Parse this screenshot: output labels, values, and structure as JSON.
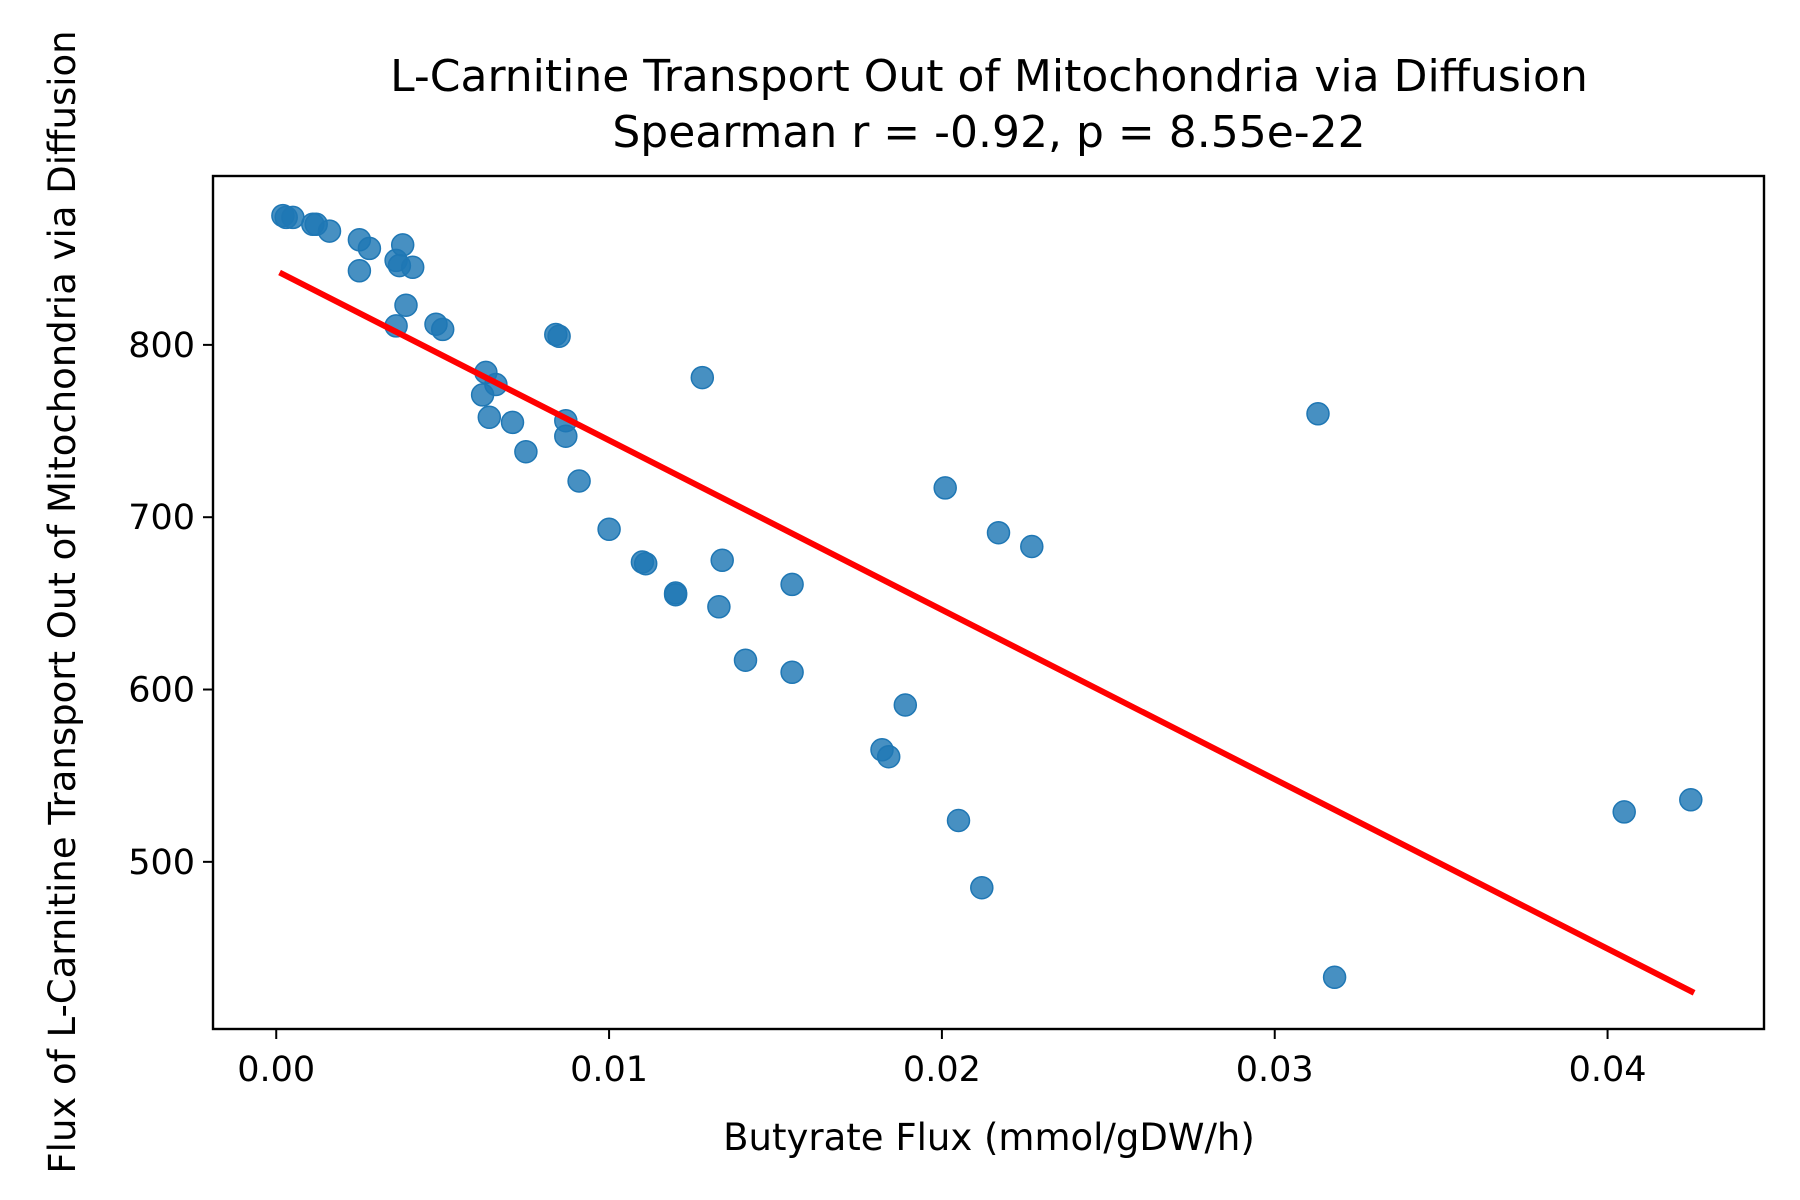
{
  "chart_data": {
    "type": "scatter",
    "title": "L-Carnitine Transport Out of Mitochondria via Diffusion",
    "subtitle": "Spearman r = -0.92, p = 8.55e-22",
    "xlabel": "Butyrate Flux (mmol/gDW/h)",
    "ylabel": "Flux of L-Carnitine Transport Out of Mitochondria via Diffusion",
    "xlim": [
      -0.0019,
      0.0447
    ],
    "ylim": [
      403,
      898
    ],
    "xticks": [
      0.0,
      0.01,
      0.02,
      0.03,
      0.04
    ],
    "xtick_labels": [
      "0.00",
      "0.01",
      "0.02",
      "0.03",
      "0.04"
    ],
    "yticks": [
      500,
      600,
      700,
      800
    ],
    "ytick_labels": [
      "500",
      "600",
      "700",
      "800"
    ],
    "grid": false,
    "point_color": "#1f77b4",
    "line_color": "#ff0000",
    "points": [
      {
        "x": 0.0002,
        "y": 875
      },
      {
        "x": 0.0003,
        "y": 874
      },
      {
        "x": 0.0005,
        "y": 874
      },
      {
        "x": 0.0011,
        "y": 870
      },
      {
        "x": 0.0012,
        "y": 870
      },
      {
        "x": 0.0016,
        "y": 866
      },
      {
        "x": 0.0025,
        "y": 861
      },
      {
        "x": 0.0028,
        "y": 856
      },
      {
        "x": 0.0025,
        "y": 843
      },
      {
        "x": 0.0036,
        "y": 849
      },
      {
        "x": 0.0038,
        "y": 858
      },
      {
        "x": 0.0037,
        "y": 846
      },
      {
        "x": 0.0041,
        "y": 845
      },
      {
        "x": 0.0039,
        "y": 823
      },
      {
        "x": 0.0036,
        "y": 811
      },
      {
        "x": 0.0048,
        "y": 812
      },
      {
        "x": 0.005,
        "y": 809
      },
      {
        "x": 0.0084,
        "y": 806
      },
      {
        "x": 0.0085,
        "y": 805
      },
      {
        "x": 0.0063,
        "y": 784
      },
      {
        "x": 0.0066,
        "y": 777
      },
      {
        "x": 0.0062,
        "y": 771
      },
      {
        "x": 0.0064,
        "y": 758
      },
      {
        "x": 0.0071,
        "y": 755
      },
      {
        "x": 0.0087,
        "y": 756
      },
      {
        "x": 0.0087,
        "y": 747
      },
      {
        "x": 0.0075,
        "y": 738
      },
      {
        "x": 0.0128,
        "y": 781
      },
      {
        "x": 0.0091,
        "y": 721
      },
      {
        "x": 0.01,
        "y": 693
      },
      {
        "x": 0.011,
        "y": 674
      },
      {
        "x": 0.0111,
        "y": 673
      },
      {
        "x": 0.0134,
        "y": 675
      },
      {
        "x": 0.012,
        "y": 656
      },
      {
        "x": 0.012,
        "y": 655
      },
      {
        "x": 0.0133,
        "y": 648
      },
      {
        "x": 0.0155,
        "y": 661
      },
      {
        "x": 0.0141,
        "y": 617
      },
      {
        "x": 0.0155,
        "y": 610
      },
      {
        "x": 0.0189,
        "y": 591
      },
      {
        "x": 0.0182,
        "y": 565
      },
      {
        "x": 0.0184,
        "y": 561
      },
      {
        "x": 0.0201,
        "y": 717
      },
      {
        "x": 0.0217,
        "y": 691
      },
      {
        "x": 0.0227,
        "y": 683
      },
      {
        "x": 0.0205,
        "y": 524
      },
      {
        "x": 0.0212,
        "y": 485
      },
      {
        "x": 0.0313,
        "y": 760
      },
      {
        "x": 0.0318,
        "y": 433
      },
      {
        "x": 0.0405,
        "y": 529
      },
      {
        "x": 0.0425,
        "y": 536
      }
    ],
    "regression_line": {
      "x": [
        0.0001,
        0.0426
      ],
      "y": [
        842,
        424
      ]
    }
  }
}
